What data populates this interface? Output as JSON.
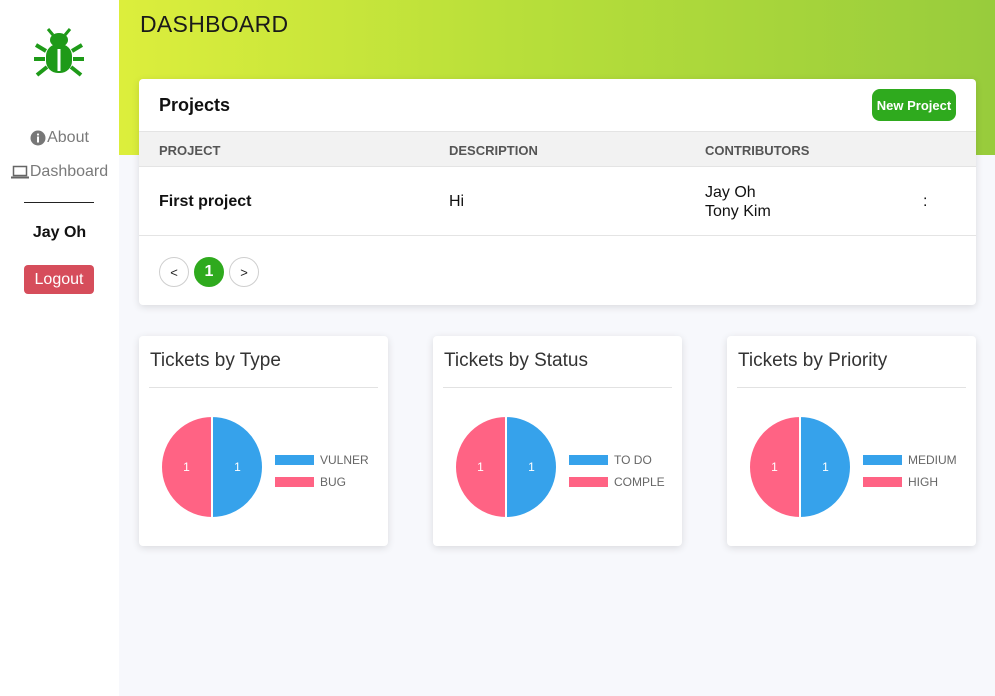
{
  "sidebar": {
    "items": [
      {
        "label": "About",
        "icon": "info-circle-icon"
      },
      {
        "label": "Dashboard",
        "icon": "laptop-icon"
      }
    ],
    "user_name": "Jay Oh",
    "logout_label": "Logout",
    "logo_icon": "bug-icon",
    "logo_color": "#1e9a18"
  },
  "header": {
    "title": "DASHBOARD"
  },
  "projects": {
    "title": "Projects",
    "new_project_label": "New Project",
    "columns": [
      "PROJECT",
      "DESCRIPTION",
      "CONTRIBUTORS"
    ],
    "rows": [
      {
        "project": "First project",
        "description": "Hi",
        "contributors": [
          "Jay Oh",
          "Tony Kim"
        ],
        "menu": ":"
      }
    ],
    "pagination": {
      "prev": "<",
      "current": "1",
      "next": ">"
    }
  },
  "colors": {
    "accent": "#2faa1e",
    "logout": "#d64d5b",
    "blue": "#36a2eb",
    "pink": "#ff6384"
  },
  "charts": [
    {
      "title": "Tickets by Type",
      "legend": [
        "VULNER",
        "BUG"
      ]
    },
    {
      "title": "Tickets by Status",
      "legend": [
        "TO DO",
        "COMPLE"
      ]
    },
    {
      "title": "Tickets by Priority",
      "legend": [
        "MEDIUM",
        "HIGH"
      ]
    }
  ],
  "chart_data": [
    {
      "type": "pie",
      "title": "Tickets by Type",
      "categories": [
        "VULNER",
        "BUG"
      ],
      "values": [
        1,
        1
      ],
      "colors": [
        "#36a2eb",
        "#ff6384"
      ],
      "legend": "right"
    },
    {
      "type": "pie",
      "title": "Tickets by Status",
      "categories": [
        "TO DO",
        "COMPLE"
      ],
      "values": [
        1,
        1
      ],
      "colors": [
        "#36a2eb",
        "#ff6384"
      ],
      "legend": "right"
    },
    {
      "type": "pie",
      "title": "Tickets by Priority",
      "categories": [
        "MEDIUM",
        "HIGH"
      ],
      "values": [
        1,
        1
      ],
      "colors": [
        "#36a2eb",
        "#ff6384"
      ],
      "legend": "right"
    }
  ]
}
